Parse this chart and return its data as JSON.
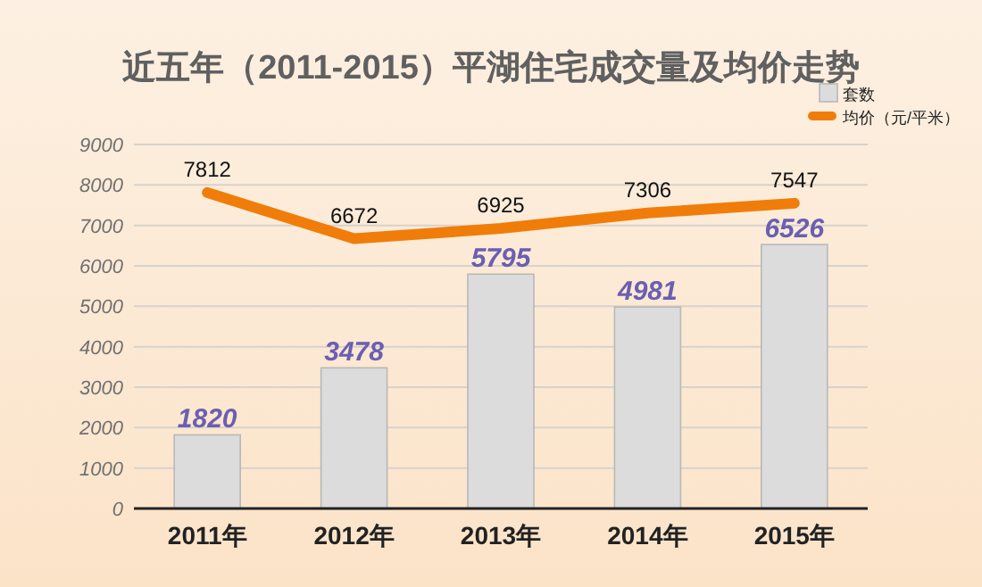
{
  "chart_data": {
    "type": "bar",
    "title": "近五年（2011-2015）平湖住宅成交量及均价走势",
    "categories": [
      "2011年",
      "2012年",
      "2013年",
      "2014年",
      "2015年"
    ],
    "series": [
      {
        "name": "套数",
        "color": "#dcdcdc",
        "values": [
          1820,
          3478,
          5795,
          4981,
          6526
        ]
      },
      {
        "name": "均价（元/平米）",
        "type": "line",
        "color": "#f07d0a",
        "values": [
          7812,
          6672,
          6925,
          7306,
          7547
        ]
      }
    ],
    "ylim": [
      0,
      9000
    ],
    "yticks": [
      0,
      1000,
      2000,
      3000,
      4000,
      5000,
      6000,
      7000,
      8000,
      9000
    ],
    "grid": "y",
    "legend": "top right",
    "data_labels": true
  }
}
